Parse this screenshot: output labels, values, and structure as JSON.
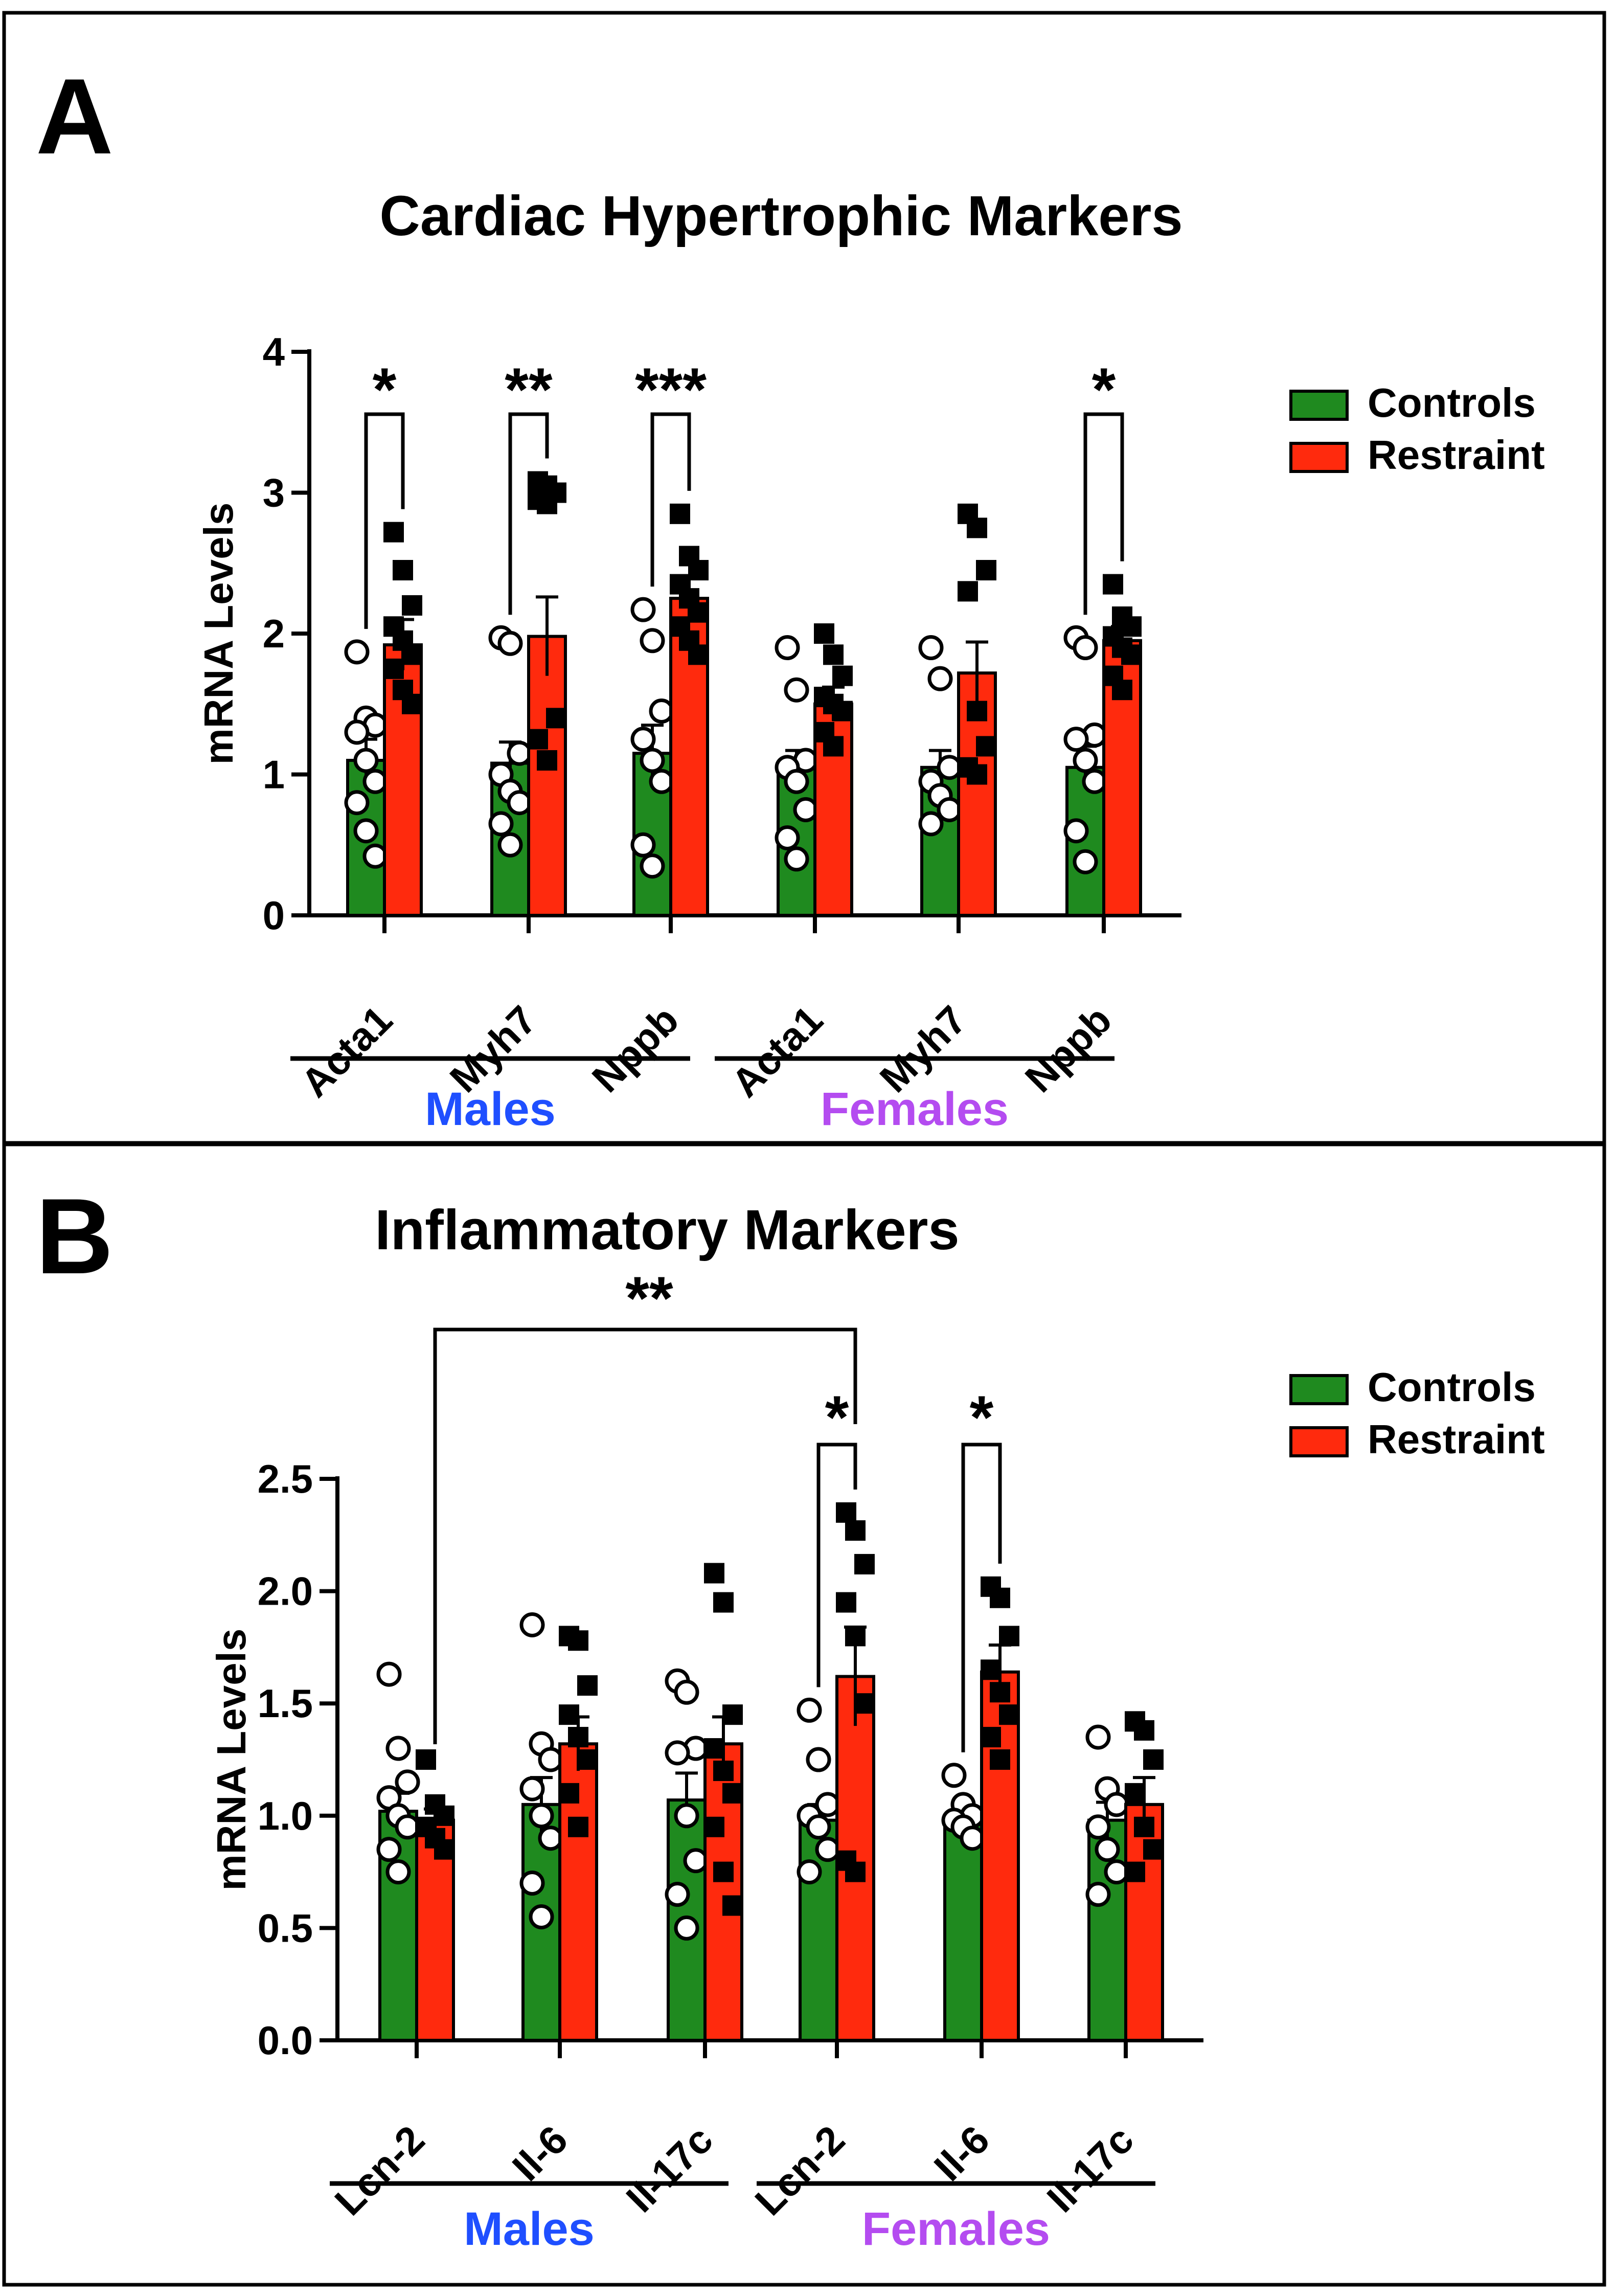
{
  "legend": {
    "controls": "Controls",
    "restraint": "Restraint"
  },
  "colors": {
    "controls": "#1f8a1f",
    "restraint": "#ff2a0d",
    "males": "#1f4fff",
    "females": "#b44cf0",
    "text": "#000000"
  },
  "group_labels": {
    "males": "Males",
    "females": "Females"
  },
  "chart_data": [
    {
      "panel": "A",
      "type": "bar",
      "title": "Cardiac Hypertrophic Markers",
      "ylabel": "mRNA Levels",
      "xlabel": "",
      "ylim": [
        0,
        4
      ],
      "yticks": [
        "0",
        "1",
        "2",
        "3",
        "4"
      ],
      "ytick_values": [
        0,
        1,
        2,
        3,
        4
      ],
      "categories": [
        "Acta1",
        "Myh7",
        "Nppb",
        "Acta1",
        "Myh7",
        "Nppb"
      ],
      "groups": [
        "Males",
        "Males",
        "Males",
        "Females",
        "Females",
        "Females"
      ],
      "series": [
        {
          "name": "Controls",
          "values": [
            1.1,
            1.08,
            1.15,
            1.05,
            1.05,
            1.05
          ],
          "errors": [
            0.15,
            0.15,
            0.2,
            0.12,
            0.12,
            0.15
          ],
          "points": [
            [
              1.87,
              1.4,
              1.35,
              1.3,
              1.1,
              0.95,
              0.8,
              0.6,
              0.42
            ],
            [
              1.97,
              1.93,
              1.15,
              1.0,
              0.88,
              0.8,
              0.65,
              0.5
            ],
            [
              2.17,
              1.95,
              1.45,
              1.25,
              1.1,
              0.95,
              0.5,
              0.35
            ],
            [
              1.9,
              1.6,
              1.1,
              1.05,
              0.95,
              0.75,
              0.55,
              0.4
            ],
            [
              1.9,
              1.68,
              1.05,
              0.95,
              0.85,
              0.75,
              0.65
            ],
            [
              1.97,
              1.9,
              1.28,
              1.25,
              1.1,
              0.95,
              0.6,
              0.38
            ]
          ]
        },
        {
          "name": "Restraint",
          "values": [
            1.92,
            1.98,
            2.25,
            1.5,
            1.72,
            1.95
          ],
          "errors": [
            0.18,
            0.28,
            0.15,
            0.12,
            0.22,
            0.1
          ],
          "points": [
            [
              2.72,
              2.45,
              2.2,
              2.05,
              1.95,
              1.85,
              1.75,
              1.6,
              1.5
            ],
            [
              3.08,
              3.05,
              3.0,
              2.95,
              2.92,
              1.4,
              1.25,
              1.1
            ],
            [
              2.85,
              2.55,
              2.45,
              2.35,
              2.25,
              2.15,
              2.05,
              1.95,
              1.85
            ],
            [
              2.0,
              1.85,
              1.7,
              1.55,
              1.5,
              1.45,
              1.3,
              1.2
            ],
            [
              2.85,
              2.75,
              2.45,
              2.3,
              1.45,
              1.2,
              1.05,
              1.0
            ],
            [
              2.35,
              2.12,
              2.05,
              1.98,
              1.9,
              1.85,
              1.7,
              1.6
            ]
          ]
        }
      ],
      "significance": [
        {
          "category_index": 0,
          "label": "*"
        },
        {
          "category_index": 1,
          "label": "**"
        },
        {
          "category_index": 2,
          "label": "***"
        },
        {
          "category_index": 5,
          "label": "*"
        }
      ],
      "legend_placement": "right"
    },
    {
      "panel": "B",
      "type": "bar",
      "title": "Inflammatory Markers",
      "ylabel": "mRNA Levels",
      "xlabel": "",
      "ylim": [
        0,
        2.5
      ],
      "yticks": [
        "0.0",
        "0.5",
        "1.0",
        "1.5",
        "2.0",
        "2.5"
      ],
      "ytick_values": [
        0,
        0.5,
        1.0,
        1.5,
        2.0,
        2.5
      ],
      "categories": [
        "Lcn-2",
        "Il-6",
        "Il-17c",
        "Lcn-2",
        "Il-6",
        "Il-17c"
      ],
      "groups": [
        "Males",
        "Males",
        "Males",
        "Females",
        "Females",
        "Females"
      ],
      "series": [
        {
          "name": "Controls",
          "values": [
            1.02,
            1.05,
            1.07,
            0.98,
            0.99,
            0.98
          ],
          "errors": [
            0.08,
            0.12,
            0.12,
            0.07,
            0.04,
            0.08
          ],
          "points": [
            [
              1.63,
              1.3,
              1.15,
              1.08,
              1.0,
              0.95,
              0.85,
              0.75
            ],
            [
              1.85,
              1.32,
              1.25,
              1.12,
              1.0,
              0.9,
              0.7,
              0.55
            ],
            [
              1.6,
              1.55,
              1.3,
              1.28,
              1.0,
              0.8,
              0.65,
              0.5
            ],
            [
              1.47,
              1.25,
              1.05,
              1.0,
              0.95,
              0.85,
              0.75
            ],
            [
              1.18,
              1.05,
              1.0,
              0.98,
              0.95,
              0.9
            ],
            [
              1.35,
              1.12,
              1.05,
              0.95,
              0.85,
              0.75,
              0.65
            ]
          ]
        },
        {
          "name": "Restraint",
          "values": [
            0.98,
            1.32,
            1.32,
            1.62,
            1.64,
            1.05
          ],
          "errors": [
            0.05,
            0.12,
            0.12,
            0.22,
            0.12,
            0.12
          ],
          "points": [
            [
              1.25,
              1.05,
              1.0,
              0.95,
              0.9,
              0.85
            ],
            [
              1.8,
              1.78,
              1.58,
              1.45,
              1.35,
              1.25,
              1.1,
              0.95
            ],
            [
              2.08,
              1.95,
              1.45,
              1.3,
              1.2,
              1.1,
              0.95,
              0.75,
              0.6
            ],
            [
              2.35,
              2.27,
              2.12,
              1.95,
              1.8,
              1.5,
              0.8,
              0.75
            ],
            [
              2.02,
              1.97,
              1.8,
              1.65,
              1.55,
              1.45,
              1.35,
              1.25
            ],
            [
              1.42,
              1.38,
              1.25,
              1.1,
              0.95,
              0.85,
              0.75
            ]
          ]
        }
      ],
      "significance": [
        {
          "category_index": 3,
          "label": "*"
        },
        {
          "category_index": 4,
          "label": "*"
        },
        {
          "between": [
            0,
            3
          ],
          "label": "**"
        }
      ],
      "legend_placement": "right"
    }
  ]
}
